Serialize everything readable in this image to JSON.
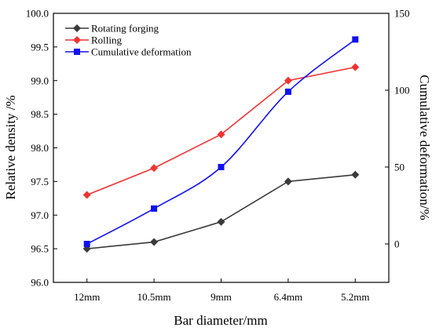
{
  "chart_data": {
    "type": "line",
    "categories": [
      "12mm",
      "10.5mm",
      "9mm",
      "6.4mm",
      "5.2mm"
    ],
    "xlabel": "Bar diameter/mm",
    "ylabel_left": "Relative density /%",
    "ylabel_right": "Cumulative deformation/%",
    "ylim_left": [
      96.0,
      100.0
    ],
    "yticks_left": [
      "96.0",
      "96.5",
      "97.0",
      "97.5",
      "98.0",
      "98.5",
      "99.0",
      "99.5",
      "100.0"
    ],
    "ylim_right": [
      -25,
      150
    ],
    "yticks_right": [
      "0",
      "50",
      "100",
      "150"
    ],
    "legend_position": "top-left",
    "grid": false,
    "series": [
      {
        "name": "Rotating forging",
        "axis": "left",
        "values": [
          96.5,
          96.6,
          96.9,
          97.5,
          97.6
        ],
        "color": "#3a3a3a",
        "marker": "diamond",
        "smooth": false
      },
      {
        "name": "Rolling",
        "axis": "left",
        "values": [
          97.3,
          97.7,
          98.2,
          99.0,
          99.2
        ],
        "color": "#ee3333",
        "marker": "diamond",
        "smooth": false
      },
      {
        "name": "Cumulative deformation",
        "axis": "right",
        "values": [
          0,
          23,
          50,
          99,
          133
        ],
        "color": "#1010ee",
        "marker": "square",
        "smooth": true
      }
    ]
  }
}
